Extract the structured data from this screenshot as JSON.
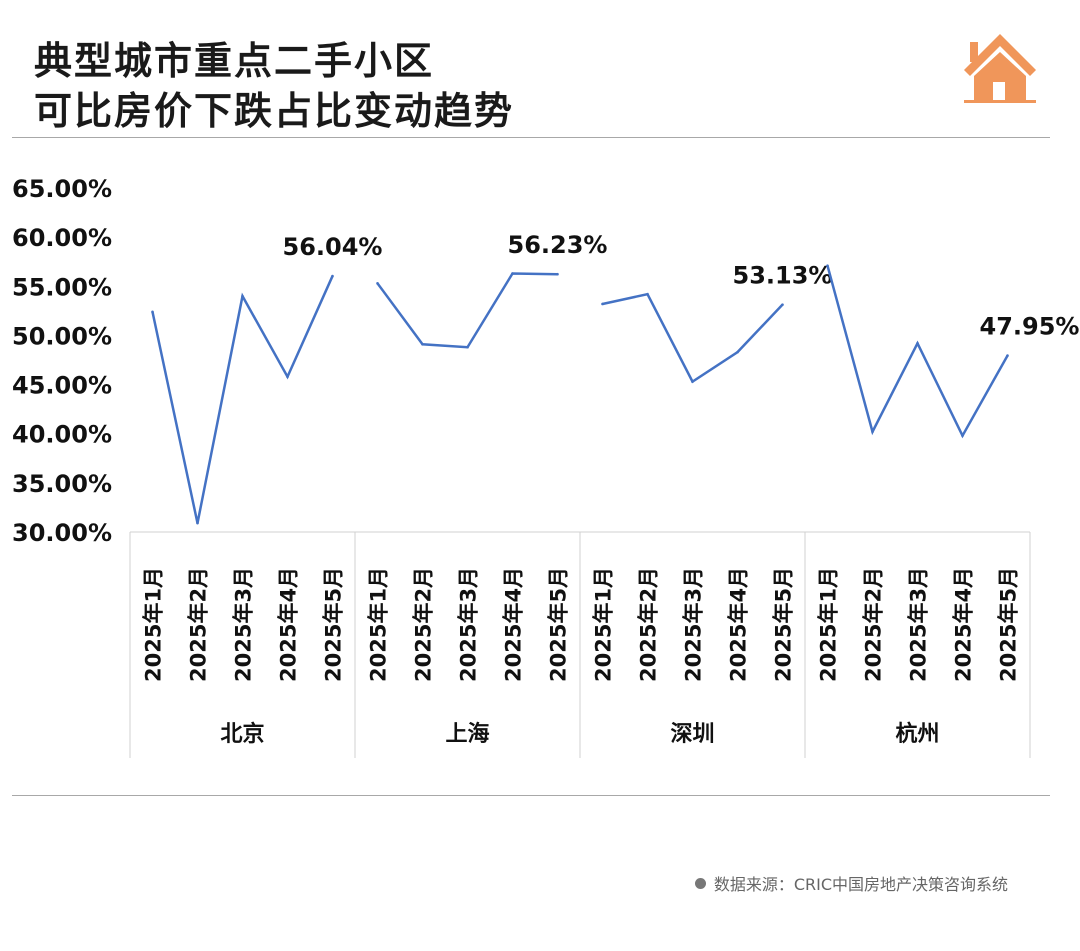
{
  "title": {
    "line1": "典型城市重点二手小区",
    "line2": "可比房价下跌占比变动趋势"
  },
  "icon": "house-icon",
  "accent_color": "#f0965a",
  "source": "数据来源：CRIC中国房地产决策咨询系统",
  "chart_data": {
    "type": "line",
    "title": "",
    "xlabel": "",
    "ylabel": "",
    "ylim": [
      30,
      65
    ],
    "yticks": [
      "30.00%",
      "35.00%",
      "40.00%",
      "45.00%",
      "50.00%",
      "55.00%",
      "60.00%",
      "65.00%"
    ],
    "grid": false,
    "line_color": "#4472c4",
    "groups": [
      {
        "name": "北京",
        "categories": [
          "2025年1月",
          "2025年2月",
          "2025年3月",
          "2025年4月",
          "2025年5月"
        ],
        "values": [
          52.4,
          30.9,
          54.0,
          45.8,
          56.04
        ],
        "label": "56.04%"
      },
      {
        "name": "上海",
        "categories": [
          "2025年1月",
          "2025年2月",
          "2025年3月",
          "2025年4月",
          "2025年5月"
        ],
        "values": [
          55.3,
          49.1,
          48.8,
          56.3,
          56.23
        ],
        "label": "56.23%"
      },
      {
        "name": "深圳",
        "categories": [
          "2025年1月",
          "2025年2月",
          "2025年3月",
          "2025年4月",
          "2025年5月"
        ],
        "values": [
          53.2,
          54.2,
          45.3,
          48.3,
          53.13
        ],
        "label": "53.13%"
      },
      {
        "name": "杭州",
        "categories": [
          "2025年1月",
          "2025年2月",
          "2025年3月",
          "2025年4月",
          "2025年5月"
        ],
        "values": [
          57.1,
          40.2,
          49.2,
          39.8,
          47.95
        ],
        "label": "47.95%"
      }
    ]
  }
}
